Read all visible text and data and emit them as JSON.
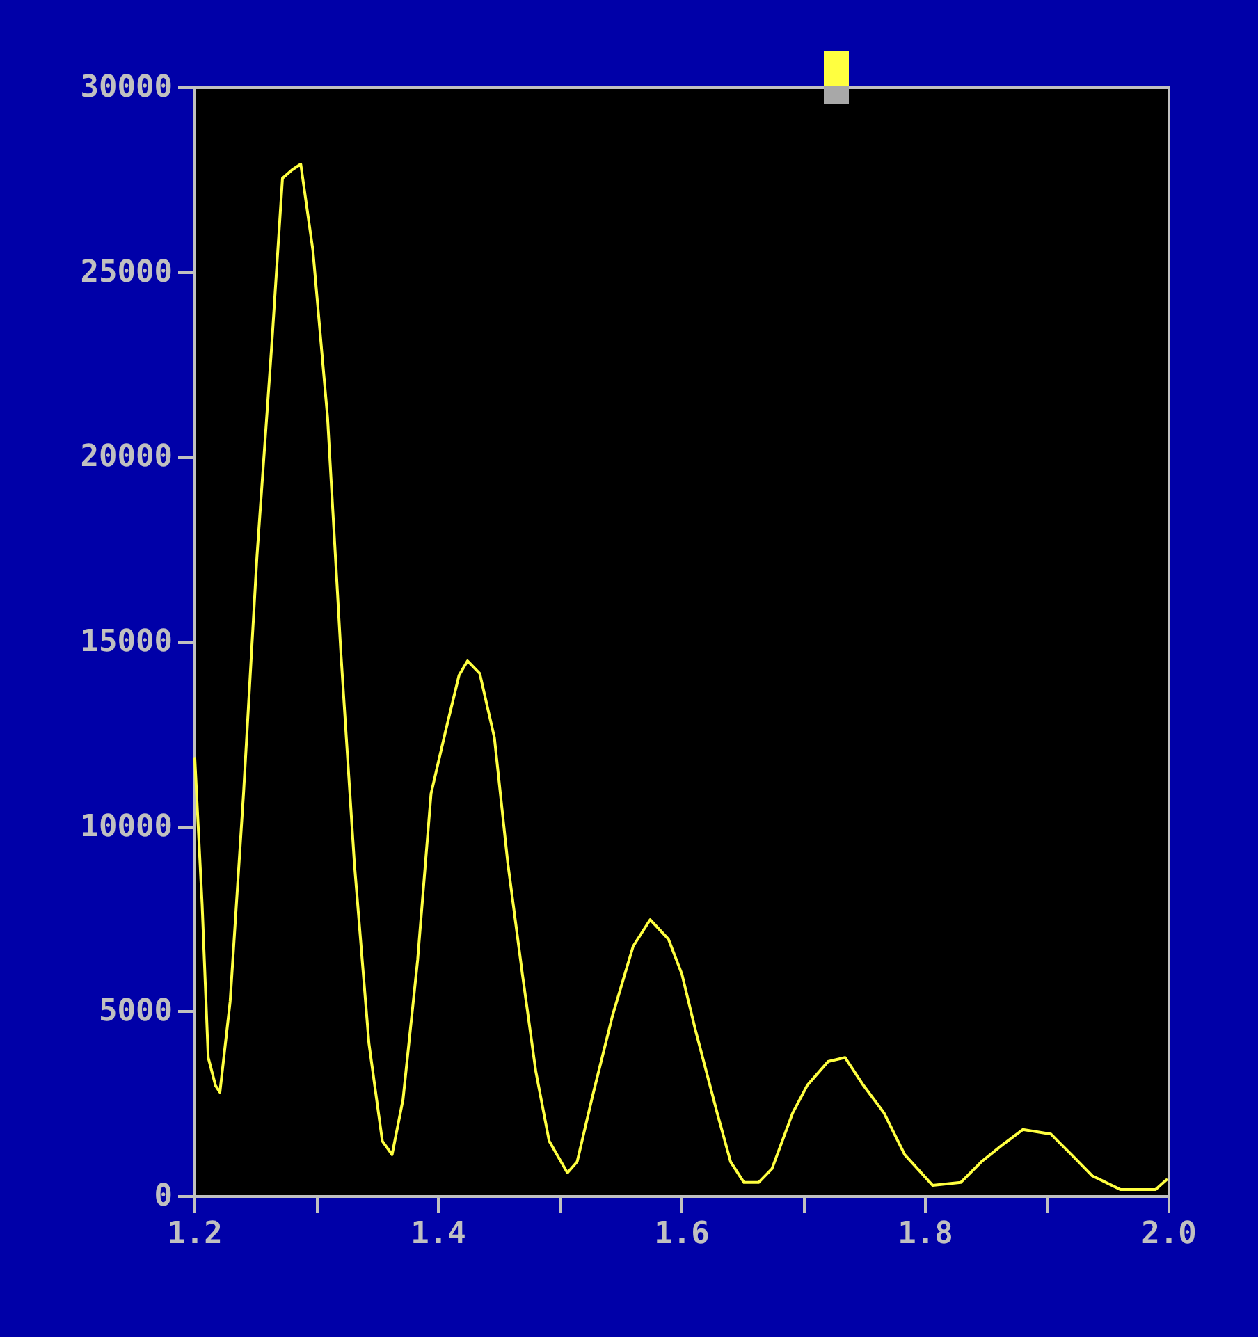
{
  "chart_data": {
    "type": "line",
    "x": [
      1.2,
      1.206,
      1.211,
      1.217,
      1.2206,
      1.229,
      1.24,
      1.251,
      1.263,
      1.272,
      1.28,
      1.287,
      1.297,
      1.309,
      1.32,
      1.331,
      1.343,
      1.354,
      1.362,
      1.371,
      1.383,
      1.394,
      1.406,
      1.417,
      1.424,
      1.434,
      1.446,
      1.457,
      1.469,
      1.48,
      1.491,
      1.506,
      1.514,
      1.526,
      1.543,
      1.56,
      1.574,
      1.589,
      1.6,
      1.611,
      1.629,
      1.64,
      1.651,
      1.663,
      1.674,
      1.691,
      1.703,
      1.72,
      1.734,
      1.749,
      1.766,
      1.783,
      1.806,
      1.829,
      1.846,
      1.863,
      1.88,
      1.903,
      1.92,
      1.937,
      1.96,
      1.989,
      1.998
    ],
    "series": [
      {
        "color": "#ffff40",
        "values": [
          11850,
          7900,
          3760,
          3000,
          2820,
          5270,
          10900,
          17300,
          22950,
          27550,
          27780,
          27930,
          25590,
          21080,
          14680,
          9030,
          4140,
          1500,
          1130,
          2630,
          6400,
          10900,
          12600,
          14100,
          14490,
          14150,
          12420,
          9030,
          6020,
          3390,
          1500,
          640,
          940,
          2630,
          4890,
          6770,
          7490,
          6960,
          6020,
          4520,
          2260,
          940,
          380,
          380,
          750,
          2260,
          3010,
          3650,
          3760,
          3010,
          2260,
          1130,
          300,
          380,
          940,
          1390,
          1810,
          1690,
          1130,
          560,
          190,
          190,
          450
        ]
      }
    ],
    "xlim": [
      1.2,
      2.0
    ],
    "xticks": [
      {
        "value": 1.2,
        "label": "1.2"
      },
      {
        "value": 1.3,
        "label": null
      },
      {
        "value": 1.4,
        "label": "1.4"
      },
      {
        "value": 1.5,
        "label": null
      },
      {
        "value": 1.6,
        "label": "1.6"
      },
      {
        "value": 1.7,
        "label": null
      },
      {
        "value": 1.8,
        "label": "1.8"
      },
      {
        "value": 1.9,
        "label": null
      },
      {
        "value": 2.0,
        "label": "2.0"
      }
    ],
    "ylim": [
      0,
      30000
    ],
    "yticks": [
      0,
      5000,
      10000,
      15000,
      20000,
      25000,
      30000
    ],
    "grid": false,
    "marker": "none",
    "line_style": "solid"
  }
}
